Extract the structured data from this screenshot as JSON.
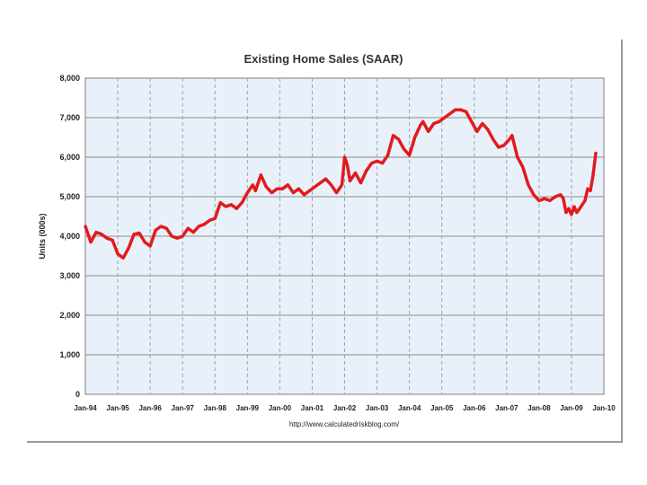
{
  "chart_data": {
    "type": "line",
    "title": "Existing Home Sales (SAAR)",
    "ylabel": "Units (000s)",
    "xlabel": "",
    "source": "http://www.calculatedriskblog.com/",
    "ylim": [
      0,
      8000
    ],
    "yticks": [
      0,
      1000,
      2000,
      3000,
      4000,
      5000,
      6000,
      7000,
      8000
    ],
    "ytick_labels": [
      "0",
      "1,000",
      "2,000",
      "3,000",
      "4,000",
      "5,000",
      "6,000",
      "7,000",
      "8,000"
    ],
    "xlim": [
      "1994-01",
      "2010-01"
    ],
    "xtick_labels": [
      "Jan-94",
      "Jan-95",
      "Jan-96",
      "Jan-97",
      "Jan-98",
      "Jan-99",
      "Jan-00",
      "Jan-01",
      "Jan-02",
      "Jan-03",
      "Jan-04",
      "Jan-05",
      "Jan-06",
      "Jan-07",
      "Jan-08",
      "Jan-09",
      "Jan-10"
    ],
    "grid": true,
    "series": [
      {
        "color": "#e31a1c",
        "points": [
          [
            "1994-01",
            4250
          ],
          [
            "1994-03",
            3850
          ],
          [
            "1994-05",
            4100
          ],
          [
            "1994-07",
            4050
          ],
          [
            "1994-09",
            3950
          ],
          [
            "1994-11",
            3900
          ],
          [
            "1995-01",
            3550
          ],
          [
            "1995-03",
            3450
          ],
          [
            "1995-05",
            3700
          ],
          [
            "1995-07",
            4050
          ],
          [
            "1995-09",
            4080
          ],
          [
            "1995-11",
            3850
          ],
          [
            "1996-01",
            3750
          ],
          [
            "1996-03",
            4150
          ],
          [
            "1996-05",
            4250
          ],
          [
            "1996-07",
            4200
          ],
          [
            "1996-09",
            4000
          ],
          [
            "1996-11",
            3950
          ],
          [
            "1997-01",
            4000
          ],
          [
            "1997-03",
            4200
          ],
          [
            "1997-05",
            4100
          ],
          [
            "1997-07",
            4250
          ],
          [
            "1997-09",
            4300
          ],
          [
            "1997-11",
            4400
          ],
          [
            "1998-01",
            4450
          ],
          [
            "1998-03",
            4850
          ],
          [
            "1998-05",
            4750
          ],
          [
            "1998-07",
            4800
          ],
          [
            "1998-09",
            4700
          ],
          [
            "1998-11",
            4850
          ],
          [
            "1999-01",
            5100
          ],
          [
            "1999-03",
            5300
          ],
          [
            "1999-04",
            5150
          ],
          [
            "1999-06",
            5550
          ],
          [
            "1999-08",
            5250
          ],
          [
            "1999-10",
            5100
          ],
          [
            "1999-12",
            5200
          ],
          [
            "2000-02",
            5200
          ],
          [
            "2000-04",
            5300
          ],
          [
            "2000-06",
            5100
          ],
          [
            "2000-08",
            5200
          ],
          [
            "2000-10",
            5050
          ],
          [
            "2000-12",
            5150
          ],
          [
            "2001-02",
            5250
          ],
          [
            "2001-04",
            5350
          ],
          [
            "2001-06",
            5450
          ],
          [
            "2001-08",
            5300
          ],
          [
            "2001-10",
            5100
          ],
          [
            "2001-12",
            5300
          ],
          [
            "2002-01",
            6000
          ],
          [
            "2002-02",
            5800
          ],
          [
            "2002-03",
            5400
          ],
          [
            "2002-05",
            5600
          ],
          [
            "2002-07",
            5350
          ],
          [
            "2002-09",
            5650
          ],
          [
            "2002-11",
            5850
          ],
          [
            "2003-01",
            5900
          ],
          [
            "2003-03",
            5850
          ],
          [
            "2003-05",
            6050
          ],
          [
            "2003-06",
            6300
          ],
          [
            "2003-07",
            6550
          ],
          [
            "2003-09",
            6450
          ],
          [
            "2003-11",
            6200
          ],
          [
            "2004-01",
            6050
          ],
          [
            "2004-03",
            6500
          ],
          [
            "2004-05",
            6800
          ],
          [
            "2004-06",
            6900
          ],
          [
            "2004-08",
            6650
          ],
          [
            "2004-10",
            6850
          ],
          [
            "2004-12",
            6900
          ],
          [
            "2005-02",
            7000
          ],
          [
            "2005-04",
            7100
          ],
          [
            "2005-06",
            7200
          ],
          [
            "2005-08",
            7200
          ],
          [
            "2005-10",
            7150
          ],
          [
            "2005-12",
            6900
          ],
          [
            "2006-02",
            6650
          ],
          [
            "2006-04",
            6850
          ],
          [
            "2006-06",
            6700
          ],
          [
            "2006-08",
            6450
          ],
          [
            "2006-10",
            6250
          ],
          [
            "2006-12",
            6300
          ],
          [
            "2007-02",
            6450
          ],
          [
            "2007-03",
            6550
          ],
          [
            "2007-05",
            6000
          ],
          [
            "2007-07",
            5750
          ],
          [
            "2007-09",
            5300
          ],
          [
            "2007-11",
            5050
          ],
          [
            "2008-01",
            4900
          ],
          [
            "2008-03",
            4950
          ],
          [
            "2008-05",
            4900
          ],
          [
            "2008-07",
            5000
          ],
          [
            "2008-09",
            5050
          ],
          [
            "2008-10",
            4950
          ],
          [
            "2008-11",
            4600
          ],
          [
            "2008-12",
            4700
          ],
          [
            "2009-01",
            4550
          ],
          [
            "2009-02",
            4750
          ],
          [
            "2009-03",
            4600
          ],
          [
            "2009-04",
            4700
          ],
          [
            "2009-05",
            4800
          ],
          [
            "2009-06",
            4900
          ],
          [
            "2009-07",
            5200
          ],
          [
            "2009-08",
            5150
          ],
          [
            "2009-09",
            5550
          ],
          [
            "2009-10",
            6100
          ]
        ]
      }
    ]
  }
}
